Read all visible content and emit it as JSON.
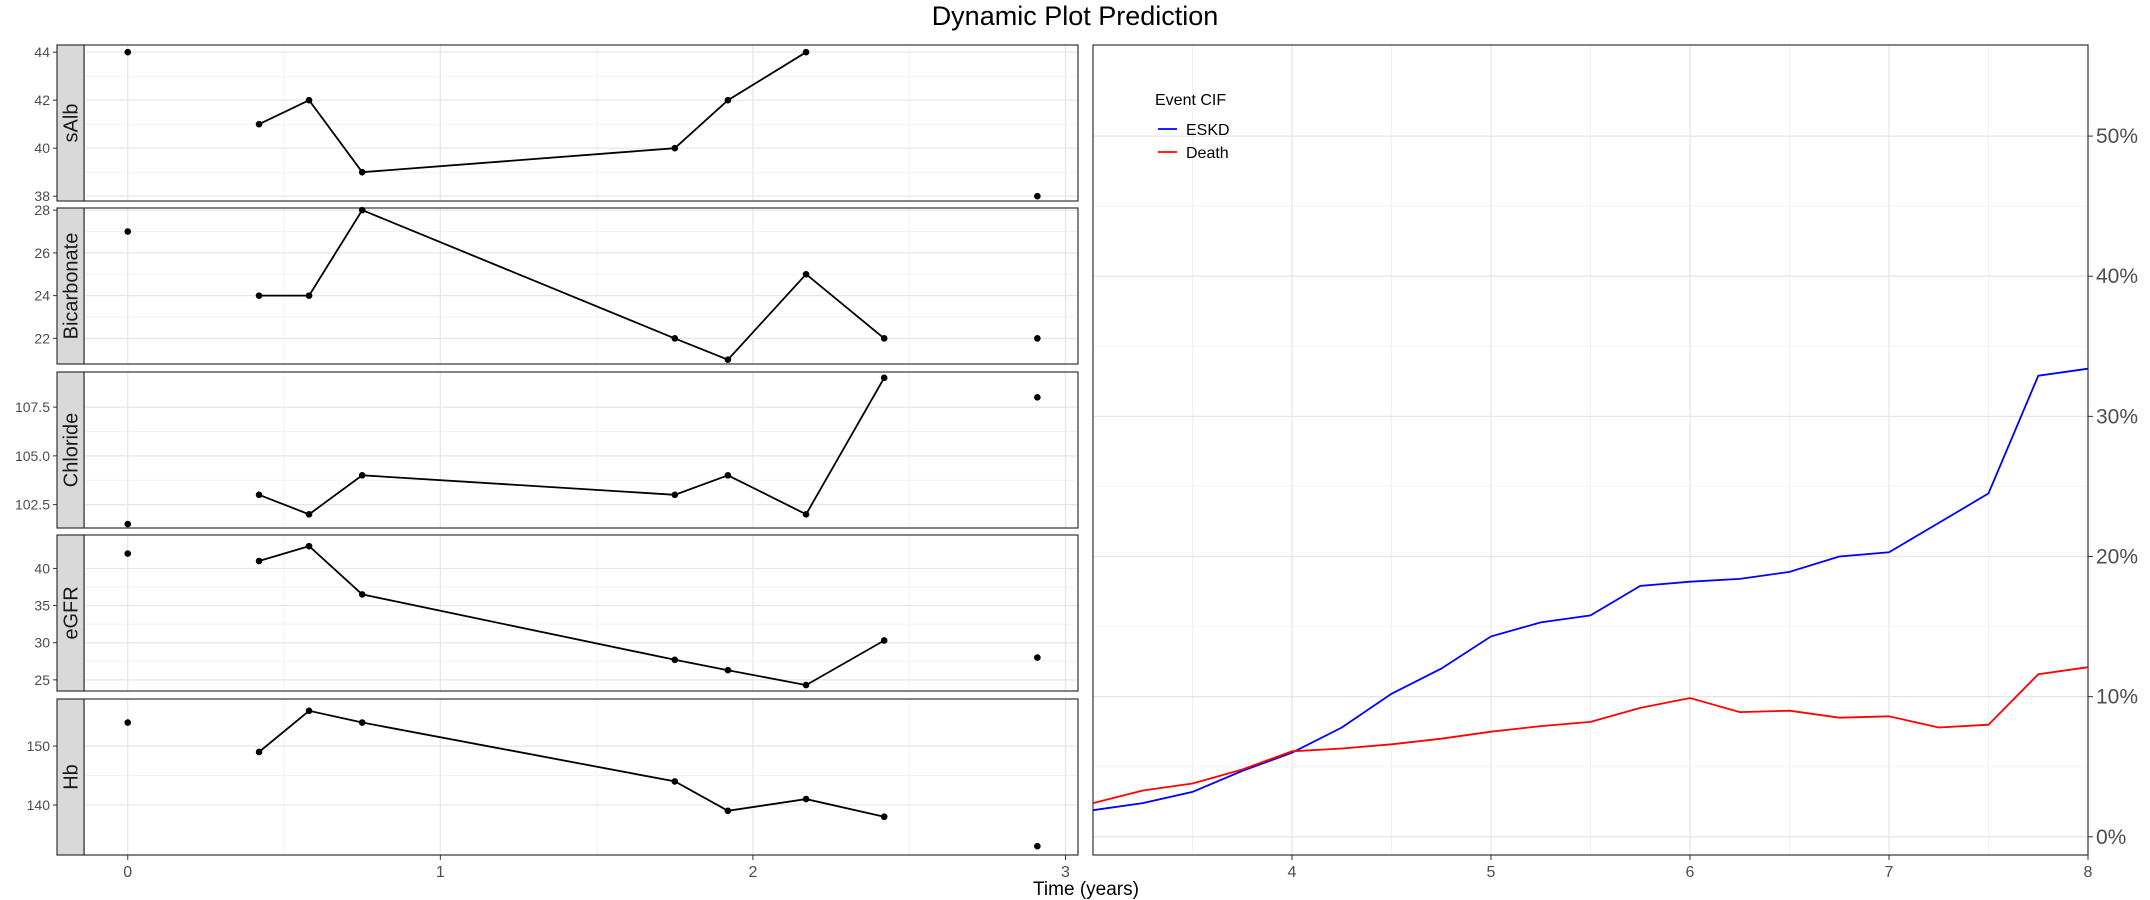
{
  "chart_data": {
    "title": "Dynamic Plot Prediction",
    "xlabel": "Time (years)",
    "left_panel": {
      "type": "line",
      "xlim": [
        -0.14,
        3.04
      ],
      "xticks": [
        0,
        1,
        2,
        3
      ],
      "facets": [
        {
          "name": "sAlb",
          "ylim": [
            37.8,
            44.3
          ],
          "yticks": [
            38,
            40,
            42,
            44
          ],
          "x": [
            0,
            0.42,
            0.58,
            0.75,
            1.75,
            1.92,
            2.17,
            2.91
          ],
          "y": [
            44,
            41,
            42,
            39,
            40,
            42,
            44,
            38
          ],
          "connected": [
            false,
            true,
            true,
            true,
            true,
            true,
            true,
            false
          ]
        },
        {
          "name": "Bicarbonate",
          "ylim": [
            20.8,
            28.1
          ],
          "yticks": [
            22,
            24,
            26,
            28
          ],
          "x": [
            0,
            0.42,
            0.58,
            0.75,
            1.75,
            1.92,
            2.17,
            2.42,
            2.91
          ],
          "y": [
            27,
            24,
            24,
            28,
            22,
            21,
            25,
            22,
            22
          ],
          "connected": [
            false,
            true,
            true,
            true,
            true,
            true,
            true,
            true,
            false
          ]
        },
        {
          "name": "Chloride",
          "ylim": [
            101.3,
            109.3
          ],
          "yticks": [
            102.5,
            105.0,
            107.5
          ],
          "ytick_labels": [
            "102.5",
            "105.0",
            "107.5"
          ],
          "x": [
            0,
            0.42,
            0.58,
            0.75,
            1.75,
            1.92,
            2.17,
            2.42,
            2.91
          ],
          "y": [
            101.5,
            103,
            102,
            104,
            103,
            104,
            102,
            109,
            108
          ],
          "connected": [
            false,
            true,
            true,
            true,
            true,
            true,
            true,
            true,
            false
          ]
        },
        {
          "name": "eGFR",
          "ylim": [
            23.5,
            44.5
          ],
          "yticks": [
            25,
            30,
            35,
            40
          ],
          "x": [
            0,
            0.42,
            0.58,
            0.75,
            1.75,
            1.92,
            2.17,
            2.42,
            2.91
          ],
          "y": [
            42,
            41,
            43,
            36.5,
            27.7,
            26.3,
            24.3,
            30.3,
            28
          ],
          "connected": [
            false,
            true,
            true,
            true,
            true,
            true,
            true,
            true,
            false
          ]
        },
        {
          "name": "Hb",
          "ylim": [
            131.5,
            158
          ],
          "yticks": [
            140,
            150
          ],
          "x": [
            0,
            0.42,
            0.58,
            0.75,
            1.75,
            1.92,
            2.17,
            2.42,
            2.91
          ],
          "y": [
            154,
            149,
            156,
            154,
            144,
            139,
            141,
            138,
            133
          ],
          "connected": [
            false,
            true,
            true,
            true,
            true,
            true,
            true,
            true,
            false
          ]
        }
      ]
    },
    "right_panel": {
      "type": "line",
      "xlim": [
        3,
        8
      ],
      "xticks": [
        4,
        5,
        6,
        7,
        8
      ],
      "ylim": [
        -0.013,
        0.565
      ],
      "yticks": [
        0,
        0.1,
        0.2,
        0.3,
        0.4,
        0.5
      ],
      "ytick_labels": [
        "0%",
        "10%",
        "20%",
        "30%",
        "40%",
        "50%"
      ],
      "legend_title": "Event CIF",
      "legend_position": "top-left",
      "series": [
        {
          "name": "ESKD",
          "color": "#0000ff",
          "x": [
            3,
            3.25,
            3.5,
            3.75,
            4,
            4.25,
            4.5,
            4.75,
            5,
            5.25,
            5.5,
            5.75,
            6,
            6.25,
            6.5,
            6.75,
            7,
            7.25,
            7.5,
            7.75,
            8
          ],
          "y": [
            0.019,
            0.024,
            0.032,
            0.047,
            0.06,
            0.078,
            0.102,
            0.12,
            0.143,
            0.153,
            0.158,
            0.179,
            0.182,
            0.184,
            0.189,
            0.2,
            0.203,
            0.224,
            0.245,
            0.329,
            0.334
          ]
        },
        {
          "name": "Death",
          "color": "#ff0000",
          "x": [
            3,
            3.25,
            3.5,
            3.75,
            4,
            4.25,
            4.5,
            4.75,
            5,
            5.25,
            5.5,
            5.75,
            6,
            6.25,
            6.5,
            6.75,
            7,
            7.25,
            7.5,
            7.75,
            8
          ],
          "y": [
            0.024,
            0.033,
            0.038,
            0.048,
            0.061,
            0.063,
            0.066,
            0.07,
            0.075,
            0.079,
            0.082,
            0.092,
            0.099,
            0.089,
            0.09,
            0.085,
            0.086,
            0.078,
            0.08,
            0.116,
            0.121
          ]
        }
      ]
    }
  }
}
